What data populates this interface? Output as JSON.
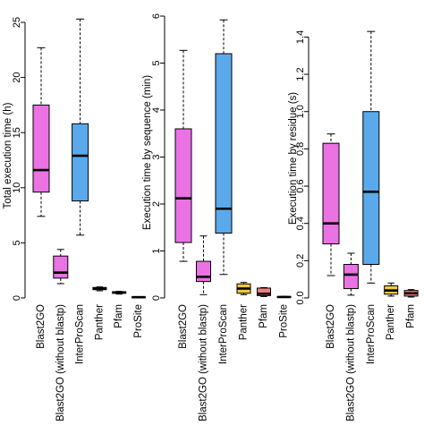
{
  "categories": [
    "Blast2GO",
    "Blast2GO (without blastp)",
    "InterProScan",
    "Panther",
    "Pfam",
    "ProSite"
  ],
  "colors": [
    "#ea72e3",
    "#ea72e3",
    "#5aaaeb",
    "#f3c93b",
    "#f28080",
    "#ffffff"
  ],
  "chart_data": [
    {
      "type": "box",
      "ylabel": "Total execution time (h)",
      "ylim": [
        0,
        25
      ],
      "yticks": [
        0,
        5,
        10,
        15,
        20,
        25
      ],
      "tick_labels": [
        "0",
        "5",
        "10",
        "15",
        "20",
        "25"
      ],
      "boxes": [
        {
          "category": "Blast2GO",
          "min": 7.4,
          "q1": 9.6,
          "median": 11.6,
          "q3": 17.5,
          "max": 22.7
        },
        {
          "category": "Blast2GO (without blastp)",
          "min": 1.3,
          "q1": 1.8,
          "median": 2.3,
          "q3": 3.8,
          "max": 4.4
        },
        {
          "category": "InterProScan",
          "min": 5.7,
          "q1": 8.8,
          "median": 12.9,
          "q3": 15.8,
          "max": 25.3
        },
        {
          "category": "Panther",
          "min": 0.65,
          "q1": 0.75,
          "median": 0.85,
          "q3": 0.95,
          "max": 1.0
        },
        {
          "category": "Pfam",
          "min": 0.35,
          "q1": 0.42,
          "median": 0.5,
          "q3": 0.57,
          "max": 0.6
        },
        {
          "category": "ProSite",
          "min": 0.03,
          "q1": 0.05,
          "median": 0.07,
          "q3": 0.09,
          "max": 0.1
        }
      ]
    },
    {
      "type": "box",
      "ylabel": "Execution time by sequence (min)",
      "ylim": [
        0,
        6
      ],
      "yticks": [
        0,
        1,
        2,
        3,
        4,
        5,
        6
      ],
      "tick_labels": [
        "0",
        "1",
        "2",
        "3",
        "4",
        "5",
        "6"
      ],
      "boxes": [
        {
          "category": "Blast2GO",
          "min": 0.78,
          "q1": 1.18,
          "median": 2.12,
          "q3": 3.6,
          "max": 5.27
        },
        {
          "category": "Blast2GO (without blastp)",
          "min": 0.07,
          "q1": 0.35,
          "median": 0.45,
          "q3": 0.78,
          "max": 1.32
        },
        {
          "category": "InterProScan",
          "min": 0.5,
          "q1": 1.38,
          "median": 1.9,
          "q3": 5.2,
          "max": 5.92
        },
        {
          "category": "Panther",
          "min": 0.07,
          "q1": 0.1,
          "median": 0.2,
          "q3": 0.3,
          "max": 0.33
        },
        {
          "category": "Pfam",
          "min": 0.03,
          "q1": 0.05,
          "median": 0.09,
          "q3": 0.21,
          "max": 0.22
        },
        {
          "category": "ProSite",
          "min": 0.01,
          "q1": 0.015,
          "median": 0.02,
          "q3": 0.03,
          "max": 0.035
        }
      ]
    },
    {
      "type": "box",
      "ylabel": "Execution time by residue (s)",
      "ylim": [
        0,
        1.45
      ],
      "yticks": [
        0,
        0.2,
        0.4,
        0.6,
        0.8,
        1.0,
        1.2,
        1.4
      ],
      "tick_labels": [
        "0.0",
        "0.2",
        "0.4",
        "0.6",
        "0.8",
        "1.0",
        "1.2",
        "1.4"
      ],
      "boxes": [
        {
          "category": "Blast2GO",
          "min": 0.12,
          "q1": 0.29,
          "median": 0.4,
          "q3": 0.83,
          "max": 0.88
        },
        {
          "category": "Blast2GO (without blastp)",
          "min": 0.015,
          "q1": 0.05,
          "median": 0.125,
          "q3": 0.18,
          "max": 0.24
        },
        {
          "category": "InterProScan",
          "min": 0.08,
          "q1": 0.18,
          "median": 0.57,
          "q3": 1.0,
          "max": 1.43
        },
        {
          "category": "Panther",
          "min": 0.01,
          "q1": 0.02,
          "median": 0.04,
          "q3": 0.065,
          "max": 0.08
        },
        {
          "category": "Pfam",
          "min": 0.005,
          "q1": 0.01,
          "median": 0.025,
          "q3": 0.04,
          "max": 0.045
        },
        {
          "category": "ProSite",
          "min": 0.0,
          "q1": 0.002,
          "median": 0.004,
          "q3": 0.006,
          "max": 0.008
        }
      ]
    }
  ]
}
